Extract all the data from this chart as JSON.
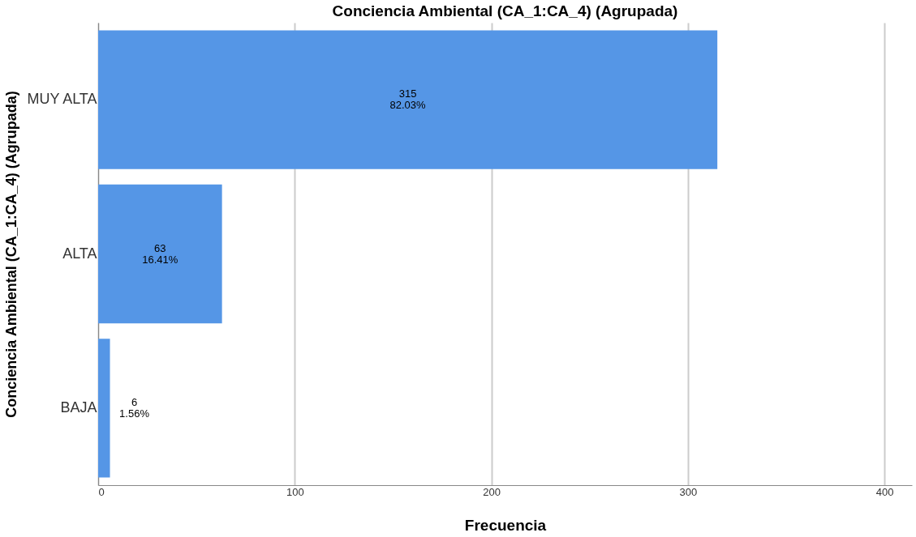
{
  "chart_data": {
    "type": "bar",
    "orientation": "horizontal",
    "title": "Conciencia Ambiental (CA_1:CA_4) (Agrupada)",
    "xlabel": "Frecuencia",
    "ylabel": "Conciencia Ambiental (CA_1:CA_4) (Agrupada)",
    "categories": [
      "MUY ALTA",
      "ALTA",
      "BAJA"
    ],
    "values": [
      315,
      63,
      6
    ],
    "color": "#5596e6",
    "value_labels": [
      "315\n82.03%",
      "63\n16.41%",
      "6\n1.56%"
    ],
    "xlim": [
      0,
      414
    ],
    "xticks": [
      0,
      100,
      200,
      300,
      400
    ],
    "grid": "x"
  }
}
